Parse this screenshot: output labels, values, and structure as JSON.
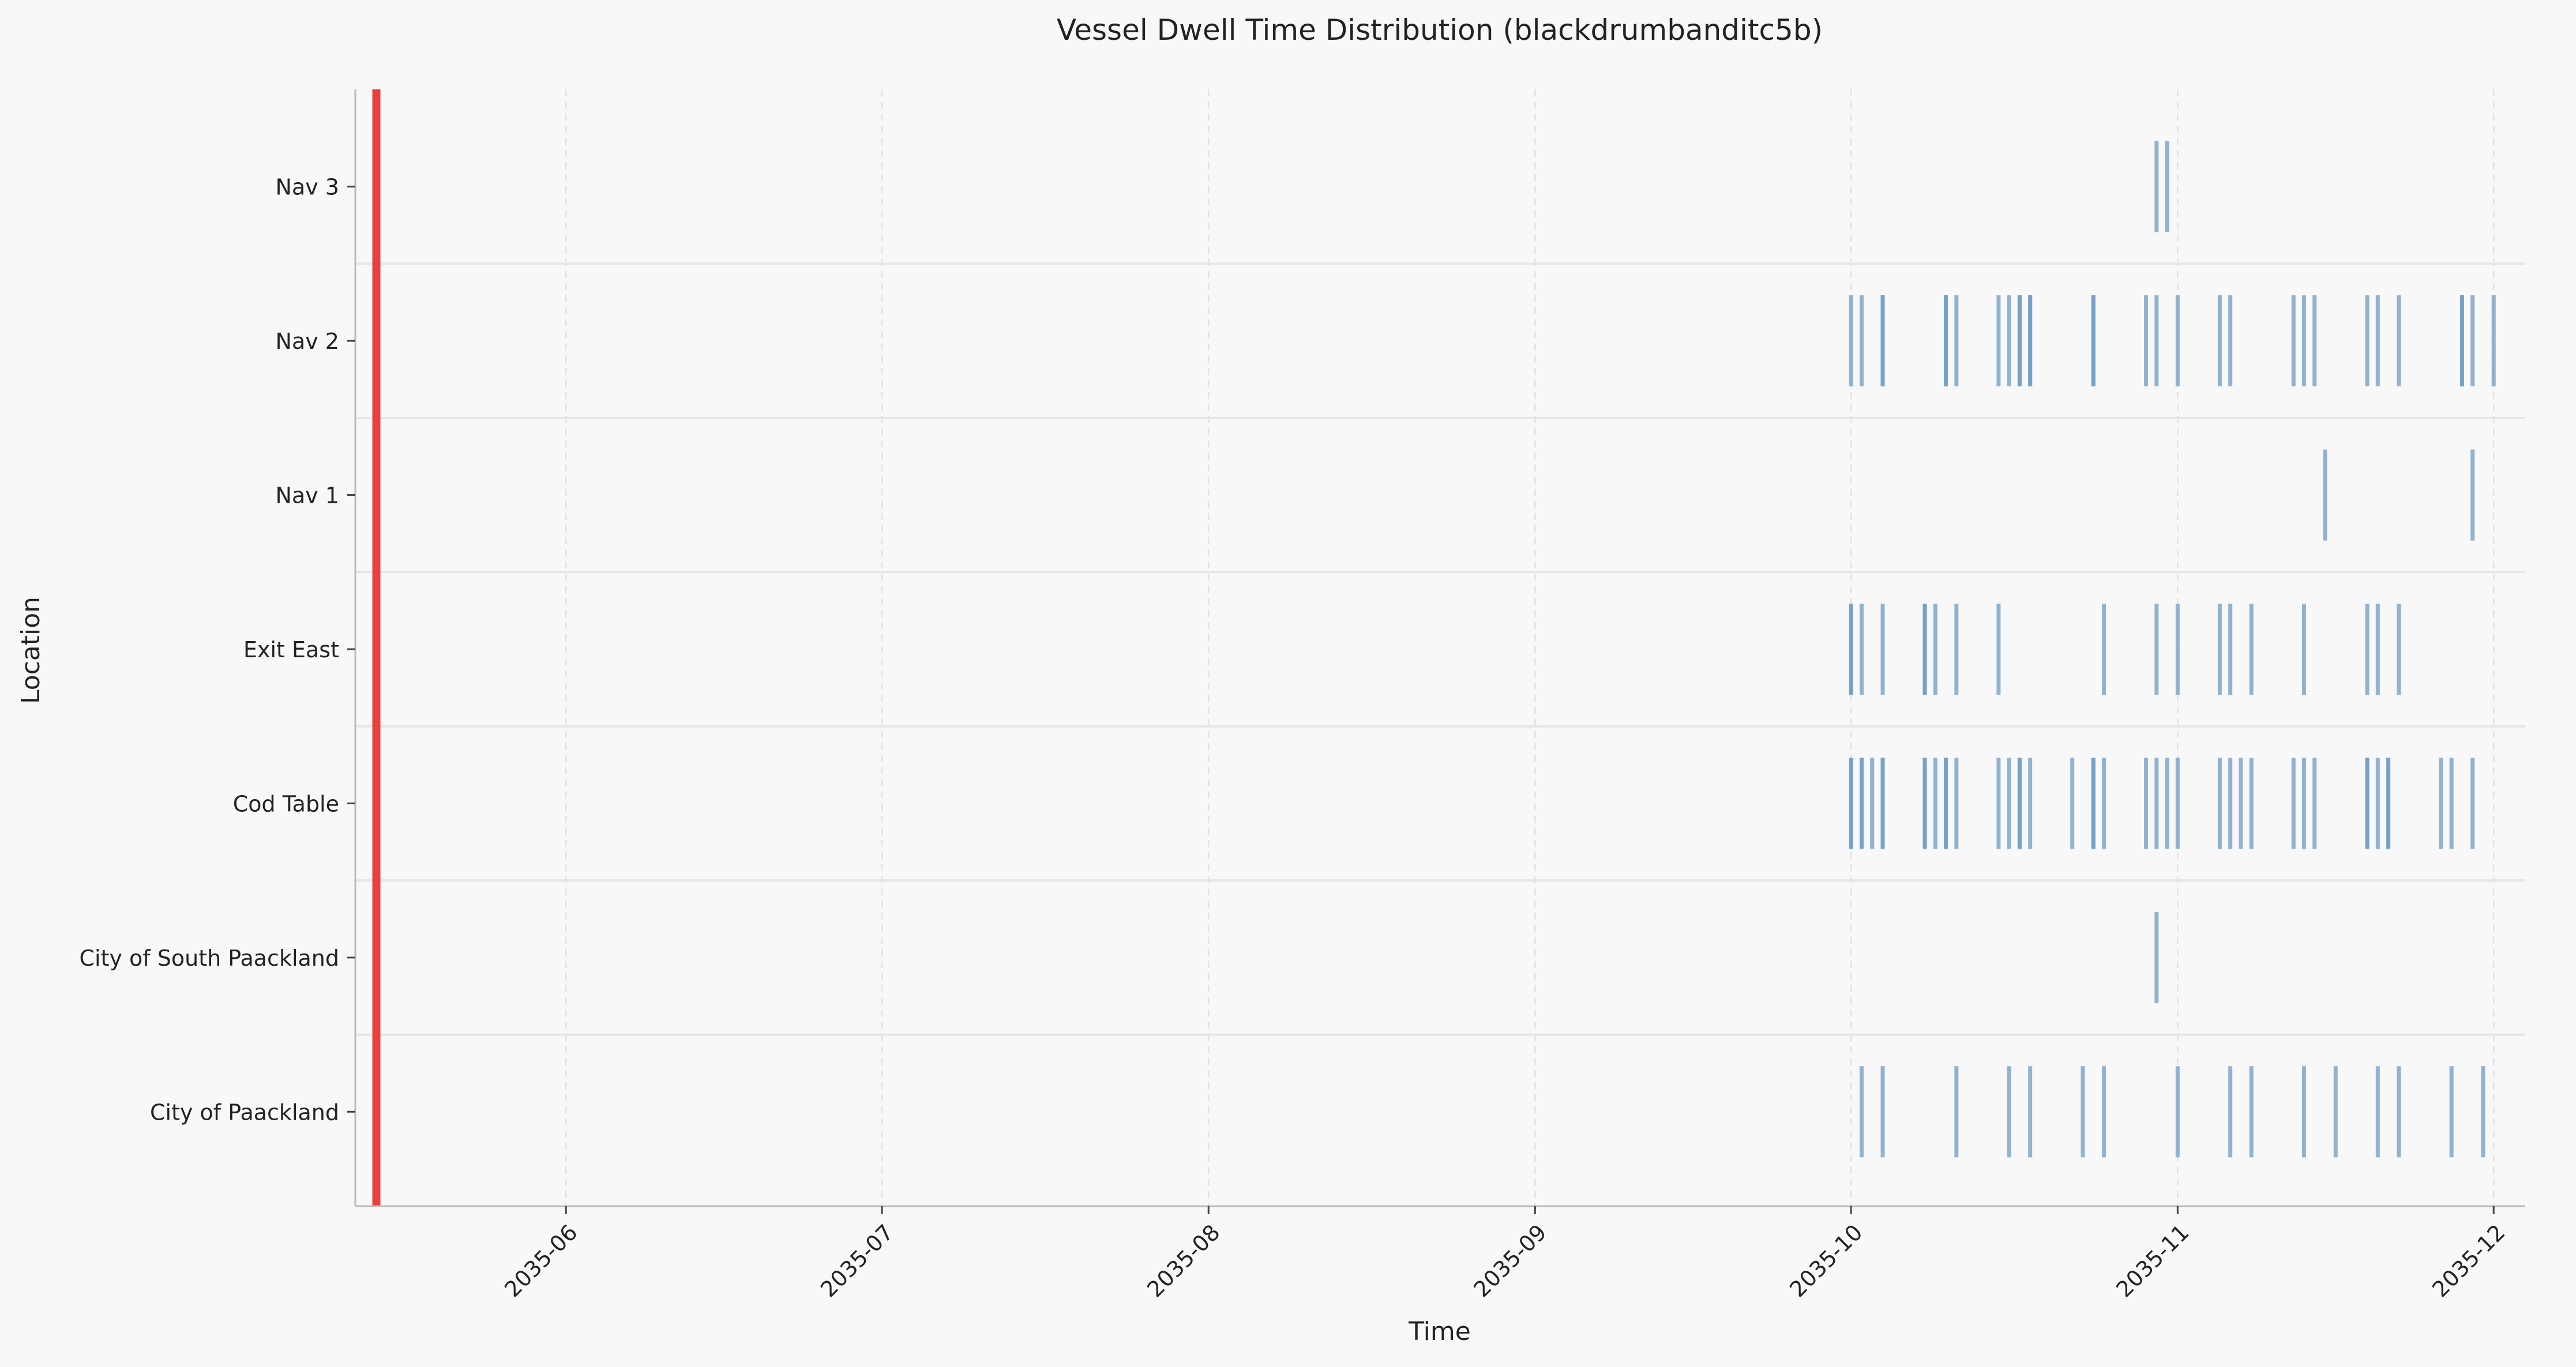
{
  "chart_data": {
    "type": "event-timeline",
    "title": "Vessel Dwell Time Distribution (blackdrumbanditc5b)",
    "xlabel": "Time",
    "ylabel": "Location",
    "x_axis": "date",
    "xlim": [
      "2035-05-12",
      "2035-12-04"
    ],
    "x_ticks": [
      "2035-06",
      "2035-07",
      "2035-08",
      "2035-09",
      "2035-10",
      "2035-11",
      "2035-12"
    ],
    "x_tick_dates": [
      "2035-06-01",
      "2035-07-01",
      "2035-08-01",
      "2035-09-01",
      "2035-10-01",
      "2035-11-01",
      "2035-12-01"
    ],
    "categories": [
      "City of Paackland",
      "City of South Paackland",
      "Cod Table",
      "Exit East",
      "Nav 1",
      "Nav 2",
      "Nav 3"
    ],
    "grid": true,
    "reference_line": {
      "date": "2035-05-14",
      "color": "#e8403e"
    },
    "event_color": "#6f9cc4",
    "series": [
      {
        "location": "City of Paackland",
        "dates": [
          "2035-10-02",
          "2035-10-04",
          "2035-10-11",
          "2035-10-16",
          "2035-10-18",
          "2035-10-23",
          "2035-10-25",
          "2035-11-01",
          "2035-11-06",
          "2035-11-08",
          "2035-11-13",
          "2035-11-16",
          "2035-11-20",
          "2035-11-22",
          "2035-11-27",
          "2035-11-30"
        ]
      },
      {
        "location": "City of South Paackland",
        "dates": [
          "2035-10-30"
        ]
      },
      {
        "location": "Cod Table",
        "dates": [
          "2035-10-01",
          "2035-10-01",
          "2035-10-02",
          "2035-10-02",
          "2035-10-03",
          "2035-10-04",
          "2035-10-04",
          "2035-10-08",
          "2035-10-08",
          "2035-10-09",
          "2035-10-10",
          "2035-10-10",
          "2035-10-11",
          "2035-10-15",
          "2035-10-16",
          "2035-10-17",
          "2035-10-17",
          "2035-10-18",
          "2035-10-22",
          "2035-10-24",
          "2035-10-24",
          "2035-10-25",
          "2035-10-29",
          "2035-10-30",
          "2035-10-31",
          "2035-11-01",
          "2035-11-05",
          "2035-11-06",
          "2035-11-07",
          "2035-11-08",
          "2035-11-12",
          "2035-11-13",
          "2035-11-14",
          "2035-11-19",
          "2035-11-19",
          "2035-11-20",
          "2035-11-21",
          "2035-11-21",
          "2035-11-26",
          "2035-11-27",
          "2035-11-29"
        ]
      },
      {
        "location": "Exit East",
        "dates": [
          "2035-10-01",
          "2035-10-01",
          "2035-10-02",
          "2035-10-04",
          "2035-10-08",
          "2035-10-08",
          "2035-10-09",
          "2035-10-11",
          "2035-10-15",
          "2035-10-25",
          "2035-10-30",
          "2035-11-01",
          "2035-11-05",
          "2035-11-06",
          "2035-11-08",
          "2035-11-13",
          "2035-11-19",
          "2035-11-20",
          "2035-11-22"
        ]
      },
      {
        "location": "Nav 1",
        "dates": [
          "2035-11-15",
          "2035-11-29"
        ]
      },
      {
        "location": "Nav 2",
        "dates": [
          "2035-10-01",
          "2035-10-02",
          "2035-10-04",
          "2035-10-04",
          "2035-10-10",
          "2035-10-10",
          "2035-10-11",
          "2035-10-15",
          "2035-10-16",
          "2035-10-17",
          "2035-10-17",
          "2035-10-18",
          "2035-10-18",
          "2035-10-24",
          "2035-10-24",
          "2035-10-29",
          "2035-10-30",
          "2035-11-01",
          "2035-11-05",
          "2035-11-06",
          "2035-11-12",
          "2035-11-13",
          "2035-11-14",
          "2035-11-19",
          "2035-11-20",
          "2035-11-22",
          "2035-11-28",
          "2035-11-28",
          "2035-11-29",
          "2035-12-01"
        ]
      },
      {
        "location": "Nav 3",
        "dates": [
          "2035-10-30",
          "2035-10-31"
        ]
      }
    ]
  }
}
